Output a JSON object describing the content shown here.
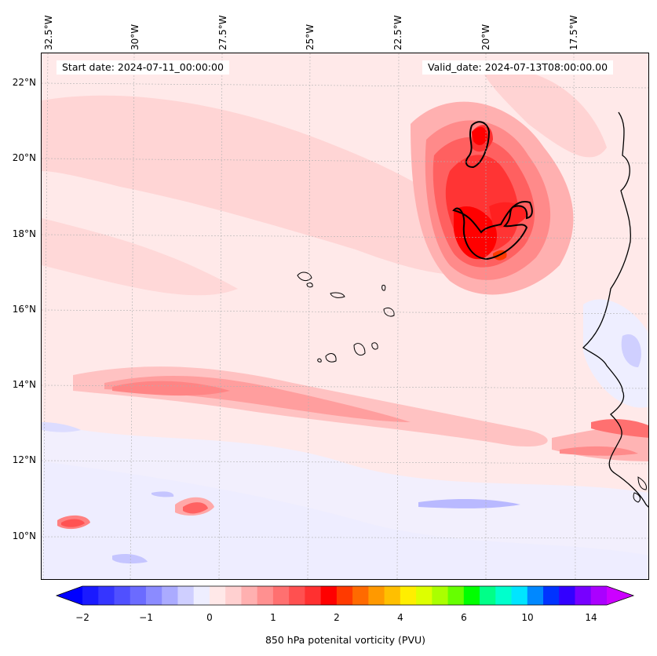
{
  "map": {
    "start_label": "Start date: 2024-07-11_00:00:00",
    "valid_label": "Valid_date: 2024-07-13T08:00:00.00",
    "lon_labels": [
      "32.5°W",
      "30°W",
      "27.5°W",
      "25°W",
      "22.5°W",
      "20°W",
      "17.5°W"
    ],
    "lat_labels": [
      "22°N",
      "20°N",
      "18°N",
      "16°N",
      "14°N",
      "12°N",
      "10°N"
    ]
  },
  "colorbar": {
    "title": "850 hPa potenital vorticity (PVU)",
    "tick_labels": [
      "−2",
      "−1",
      "0",
      "1",
      "2",
      "4",
      "6",
      "10",
      "14"
    ],
    "colors": [
      "#1a1aff",
      "#3535ff",
      "#5050ff",
      "#6b6bff",
      "#8b8bff",
      "#ababff",
      "#cfcfff",
      "#eeeeff",
      "#ffe8e8",
      "#ffd0d0",
      "#ffb0b0",
      "#ff9090",
      "#ff7070",
      "#ff5050",
      "#ff3030",
      "#ff0000",
      "#ff3a00",
      "#ff6a00",
      "#ff9900",
      "#ffbf00",
      "#ffee00",
      "#ddff00",
      "#aaff00",
      "#66ff00",
      "#00ff00",
      "#00ff88",
      "#00ffcc",
      "#00e5ff",
      "#0088ff",
      "#0033ff",
      "#3300ff",
      "#7700ff",
      "#aa00ff"
    ],
    "under_color": "#0000ff",
    "over_color": "#cc00ff"
  }
}
